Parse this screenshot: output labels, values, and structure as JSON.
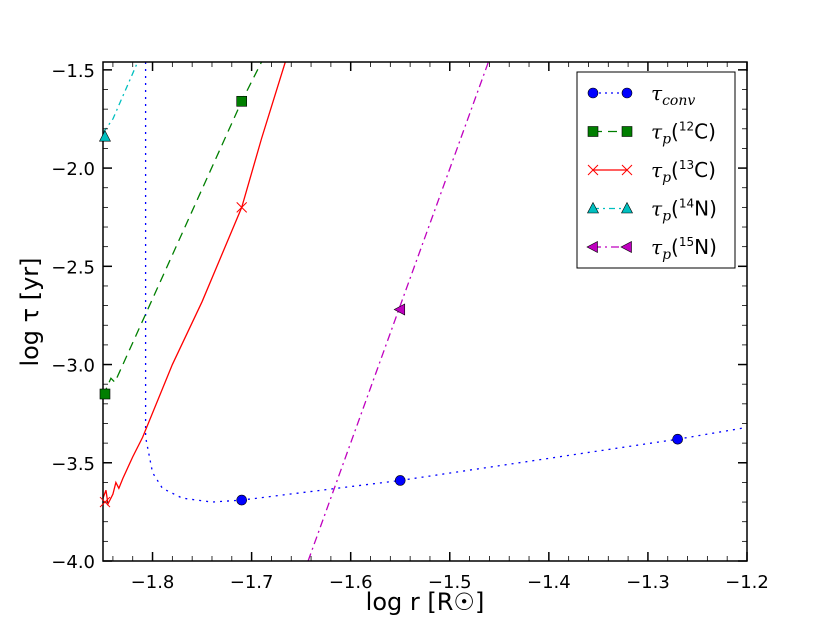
{
  "chart_data": {
    "type": "line",
    "xlabel": "log r [R☉]",
    "ylabel": "log τ [yr]",
    "xlim": [
      -1.85,
      -1.2
    ],
    "ylim": [
      -4.0,
      -1.46
    ],
    "xticks": [
      -1.8,
      -1.7,
      -1.6,
      -1.5,
      -1.4,
      -1.3,
      -1.2
    ],
    "xtick_labels": [
      "−1.8",
      "−1.7",
      "−1.6",
      "−1.5",
      "−1.4",
      "−1.3",
      "−1.2"
    ],
    "yticks": [
      -1.5,
      -2.0,
      -2.5,
      -3.0,
      -3.5,
      -4.0
    ],
    "ytick_labels": [
      "−1.5",
      "−2.0",
      "−2.5",
      "−3.0",
      "−3.5",
      "−4.0"
    ],
    "legend_position": "top-right",
    "series": [
      {
        "name": "τ_conv",
        "legend": "τconv",
        "color": "#0000ff",
        "dash": "2,5",
        "marker": "circle",
        "line": [
          [
            -1.807,
            -1.46
          ],
          [
            -1.807,
            -3.37
          ],
          [
            -1.8,
            -3.55
          ],
          [
            -1.79,
            -3.63
          ],
          [
            -1.77,
            -3.68
          ],
          [
            -1.74,
            -3.7
          ],
          [
            -1.71,
            -3.69
          ],
          [
            -1.55,
            -3.59
          ],
          [
            -1.27,
            -3.38
          ],
          [
            -1.2,
            -3.32
          ]
        ],
        "markers": [
          [
            -1.71,
            -3.69
          ],
          [
            -1.55,
            -3.59
          ],
          [
            -1.27,
            -3.38
          ]
        ]
      },
      {
        "name": "τ_p(12C)",
        "legend": "τp(12C)",
        "color": "#007f00",
        "dash": "9,6",
        "marker": "square",
        "line": [
          [
            -1.85,
            -3.16
          ],
          [
            -1.842,
            -3.07
          ],
          [
            -1.838,
            -3.09
          ],
          [
            -1.71,
            -1.66
          ],
          [
            -1.69,
            -1.46
          ]
        ],
        "markers": [
          [
            -1.848,
            -3.15
          ],
          [
            -1.71,
            -1.66
          ]
        ]
      },
      {
        "name": "τ_p(13C)",
        "legend": "τp(13C)",
        "color": "#ff0000",
        "dash": "",
        "marker": "x",
        "line": [
          [
            -1.85,
            -3.68
          ],
          [
            -1.847,
            -3.64
          ],
          [
            -1.845,
            -3.71
          ],
          [
            -1.84,
            -3.66
          ],
          [
            -1.837,
            -3.6
          ],
          [
            -1.834,
            -3.63
          ],
          [
            -1.83,
            -3.58
          ],
          [
            -1.82,
            -3.47
          ],
          [
            -1.81,
            -3.37
          ],
          [
            -1.78,
            -3.0
          ],
          [
            -1.75,
            -2.68
          ],
          [
            -1.71,
            -2.2
          ],
          [
            -1.69,
            -1.85
          ],
          [
            -1.666,
            -1.46
          ]
        ],
        "markers": [
          [
            -1.848,
            -3.7
          ],
          [
            -1.71,
            -2.2
          ]
        ]
      },
      {
        "name": "τ_p(14N)",
        "legend": "τp(14N)",
        "color": "#00bfbf",
        "dash": "6,4,2,4",
        "marker": "triangle-up",
        "line": [
          [
            -1.85,
            -1.82
          ],
          [
            -1.84,
            -1.75
          ],
          [
            -1.815,
            -1.46
          ]
        ],
        "markers": [
          [
            -1.848,
            -1.84
          ]
        ]
      },
      {
        "name": "τ_p(15N)",
        "legend": "τp(15N)",
        "color": "#bf00bf",
        "dash": "8,4,2,4",
        "marker": "triangle-left",
        "line": [
          [
            -1.643,
            -4.0
          ],
          [
            -1.55,
            -2.7
          ],
          [
            -1.461,
            -1.46
          ]
        ],
        "markers": [
          [
            -1.55,
            -2.72
          ]
        ]
      }
    ]
  },
  "colors": {
    "axis": "#000000",
    "background": "#ffffff"
  }
}
